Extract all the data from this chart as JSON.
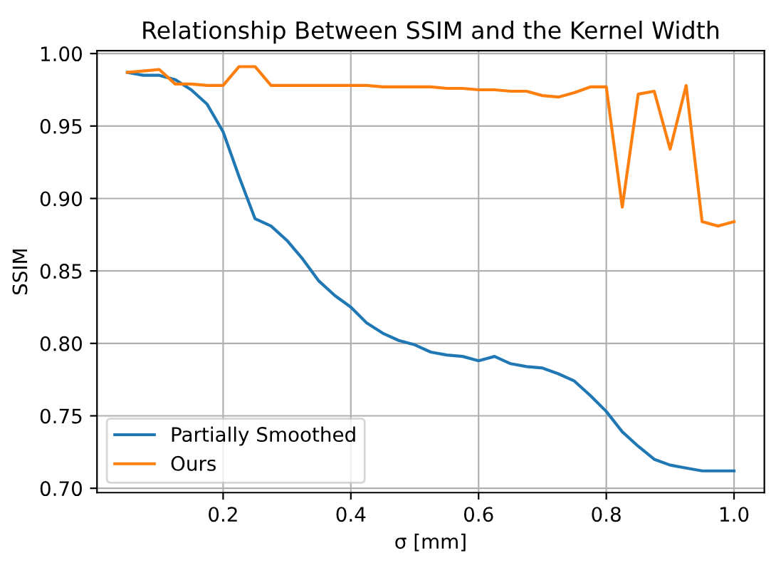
{
  "chart_data": {
    "type": "line",
    "title": "Relationship Between SSIM and the Kernel Width",
    "xlabel": "σ [mm]",
    "ylabel": "SSIM",
    "x": [
      0.05,
      0.075,
      0.1,
      0.125,
      0.15,
      0.175,
      0.2,
      0.225,
      0.25,
      0.275,
      0.3,
      0.325,
      0.35,
      0.375,
      0.4,
      0.425,
      0.45,
      0.475,
      0.5,
      0.525,
      0.55,
      0.575,
      0.6,
      0.625,
      0.65,
      0.675,
      0.7,
      0.725,
      0.75,
      0.775,
      0.8,
      0.825,
      0.85,
      0.875,
      0.9,
      0.925,
      0.95,
      0.975,
      1.0
    ],
    "series": [
      {
        "name": "Partially Smoothed",
        "color": "#1f77b4",
        "values": [
          0.987,
          0.985,
          0.985,
          0.982,
          0.975,
          0.965,
          0.946,
          0.915,
          0.886,
          0.881,
          0.871,
          0.858,
          0.843,
          0.833,
          0.825,
          0.814,
          0.807,
          0.802,
          0.799,
          0.794,
          0.792,
          0.791,
          0.788,
          0.791,
          0.786,
          0.784,
          0.783,
          0.779,
          0.774,
          0.764,
          0.753,
          0.739,
          0.729,
          0.72,
          0.716,
          0.714,
          0.712,
          0.712,
          0.712
        ]
      },
      {
        "name": "Ours",
        "color": "#ff7f0e",
        "values": [
          0.987,
          0.988,
          0.989,
          0.979,
          0.979,
          0.978,
          0.978,
          0.991,
          0.991,
          0.978,
          0.978,
          0.978,
          0.978,
          0.978,
          0.978,
          0.978,
          0.977,
          0.977,
          0.977,
          0.977,
          0.976,
          0.976,
          0.975,
          0.975,
          0.974,
          0.974,
          0.971,
          0.97,
          0.973,
          0.977,
          0.977,
          0.894,
          0.972,
          0.974,
          0.934,
          0.978,
          0.884,
          0.881,
          0.884
        ]
      }
    ],
    "xlim": [
      0.0025,
      1.0475
    ],
    "ylim": [
      0.697,
      1.002
    ],
    "xticks": [
      {
        "value": 0.2,
        "label": "0.2"
      },
      {
        "value": 0.4,
        "label": "0.4"
      },
      {
        "value": 0.6,
        "label": "0.6"
      },
      {
        "value": 0.8,
        "label": "0.8"
      },
      {
        "value": 1.0,
        "label": "1.0"
      }
    ],
    "yticks": [
      {
        "value": 0.7,
        "label": "0.70"
      },
      {
        "value": 0.75,
        "label": "0.75"
      },
      {
        "value": 0.8,
        "label": "0.80"
      },
      {
        "value": 0.85,
        "label": "0.85"
      },
      {
        "value": 0.9,
        "label": "0.90"
      },
      {
        "value": 0.95,
        "label": "0.95"
      },
      {
        "value": 1.0,
        "label": "1.00"
      }
    ],
    "grid": true,
    "legend": "bottom left",
    "marker": "none",
    "line_style": "solid"
  }
}
